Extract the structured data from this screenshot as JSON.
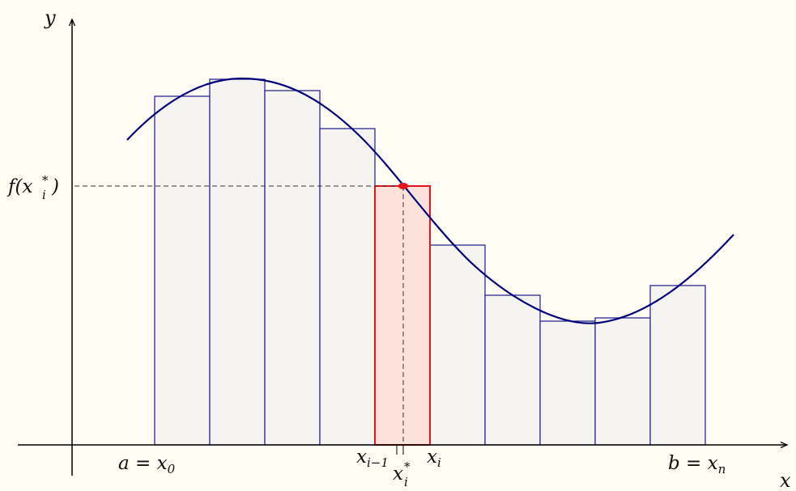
{
  "labels": {
    "y_axis": "y",
    "x_axis": "x",
    "a": "a = x",
    "a_sub": "0",
    "b": "b = x",
    "b_sub": "n",
    "xi_minus_1": "x",
    "xi_minus_1_sub": "i−1",
    "xi": "x",
    "xi_sub": "i",
    "xi_star": "x",
    "xi_star_sub": "i",
    "xi_star_sup": "*",
    "f_left": "f(x",
    "f_sub": "i",
    "f_sup": "*",
    "f_right": ")"
  },
  "colors": {
    "curve": "#00007a",
    "rect_stroke": "#1a1a8c",
    "rect_fill": "#f6f4f0",
    "highlight_stroke": "#e8141c",
    "highlight_fill": "#fde2dc",
    "point": "#e8141c",
    "axis": "#000000"
  }
}
